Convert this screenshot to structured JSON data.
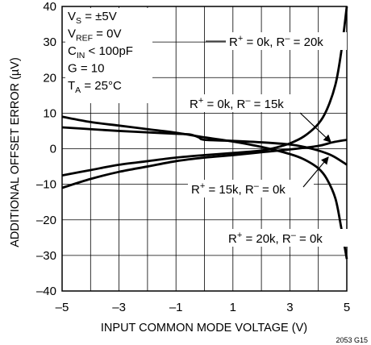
{
  "chart_data": {
    "type": "line",
    "xlabel": "INPUT COMMON MODE VOLTAGE (V)",
    "ylabel": "ADDITIONAL OFFSET ERROR (µV)",
    "xlim": [
      -5,
      5
    ],
    "ylim": [
      -40,
      40
    ],
    "x_ticks": [
      "–5",
      "–3",
      "–1",
      "1",
      "3",
      "5"
    ],
    "y_ticks": [
      "40",
      "30",
      "20",
      "10",
      "0",
      "–10",
      "–20",
      "–30",
      "–40"
    ],
    "grid": true,
    "conditions": [
      {
        "main": "V",
        "sub": "S",
        "rest": " = ±5V"
      },
      {
        "main": "V",
        "sub": "REF",
        "rest": " = 0V"
      },
      {
        "main": "C",
        "sub": "IN",
        "rest": " < 100pF"
      },
      {
        "main": "G = 10",
        "sub": "",
        "rest": ""
      },
      {
        "main": "T",
        "sub": "A",
        "rest": " = 25°C"
      }
    ],
    "figure_id": "2053 G15",
    "series": [
      {
        "label": {
          "p1": "R",
          "s1": "+",
          "p2": " = 0k, R",
          "s2": "–",
          "p3": " = 20k"
        },
        "x": [
          -5,
          -4,
          -3,
          -2,
          -1,
          0,
          1,
          2,
          2.5,
          3,
          3.5,
          4,
          4.3,
          4.6,
          4.8,
          5
        ],
        "y": [
          -7.5,
          -6,
          -4.5,
          -3.5,
          -2.5,
          -1.8,
          -1.2,
          -0.5,
          0.3,
          1.5,
          3.5,
          7,
          11,
          18,
          27,
          40
        ]
      },
      {
        "label": {
          "p1": "R",
          "s1": "+",
          "p2": " = 0k, R",
          "s2": "–",
          "p3": " = 15k"
        },
        "x": [
          -5,
          -4,
          -3,
          -2,
          -1,
          0,
          1,
          2,
          3,
          4,
          4.5,
          5
        ],
        "y": [
          -11,
          -8.5,
          -6.5,
          -5,
          -3.5,
          -2.5,
          -1.8,
          -1,
          -0.2,
          0.8,
          1.8,
          2.5
        ]
      },
      {
        "label": {
          "p1": "R",
          "s1": "+",
          "p2": " = 15k, R",
          "s2": "–",
          "p3": " = 0k"
        },
        "x": [
          -5,
          -4,
          -3,
          -2,
          -1,
          -0.5,
          -0.2,
          0,
          1,
          2,
          3,
          3.5,
          4,
          4.5,
          5
        ],
        "y": [
          6,
          5.5,
          5,
          4.6,
          4.2,
          4,
          3.2,
          2.5,
          2.2,
          1.8,
          1.2,
          0.5,
          -0.5,
          -2,
          -4.5
        ]
      },
      {
        "label": {
          "p1": "R",
          "s1": "+",
          "p2": " = 20k, R",
          "s2": "–",
          "p3": " = 0k"
        },
        "x": [
          -5,
          -4,
          -3,
          -2,
          -1,
          0,
          1,
          2,
          3,
          3.5,
          4,
          4.3,
          4.6,
          4.8,
          5
        ],
        "y": [
          9,
          7.5,
          6.5,
          5.5,
          4.5,
          3.2,
          2,
          0.5,
          -1.5,
          -3,
          -5.5,
          -8.5,
          -14,
          -22,
          -31
        ]
      }
    ]
  }
}
